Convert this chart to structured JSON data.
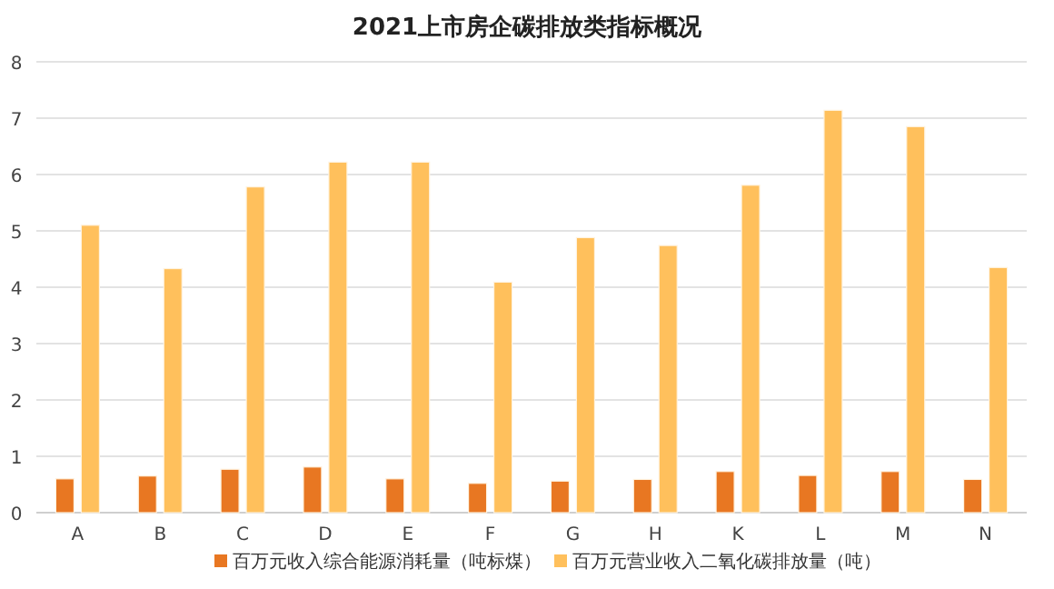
{
  "chart_data": {
    "type": "bar",
    "title": "2021上市房企碳排放类指标概况",
    "categories": [
      "A",
      "B",
      "C",
      "D",
      "E",
      "F",
      "G",
      "H",
      "K",
      "L",
      "M",
      "N"
    ],
    "series": [
      {
        "name": "百万元收入综合能源消耗量（吨标煤）",
        "color": "#e87722",
        "values": [
          0.6,
          0.65,
          0.77,
          0.81,
          0.6,
          0.52,
          0.56,
          0.59,
          0.73,
          0.66,
          0.73,
          0.59
        ]
      },
      {
        "name": "百万元营业收入二氧化碳排放量（吨）",
        "color": "#ffc05c",
        "values": [
          5.1,
          4.33,
          5.78,
          6.22,
          6.22,
          4.09,
          4.88,
          4.74,
          5.81,
          7.14,
          6.85,
          4.35
        ]
      }
    ],
    "ylim": [
      0,
      8
    ],
    "yticks": [
      0,
      1,
      2,
      3,
      4,
      5,
      6,
      7,
      8
    ],
    "grid": "y",
    "legend": "bottom"
  }
}
